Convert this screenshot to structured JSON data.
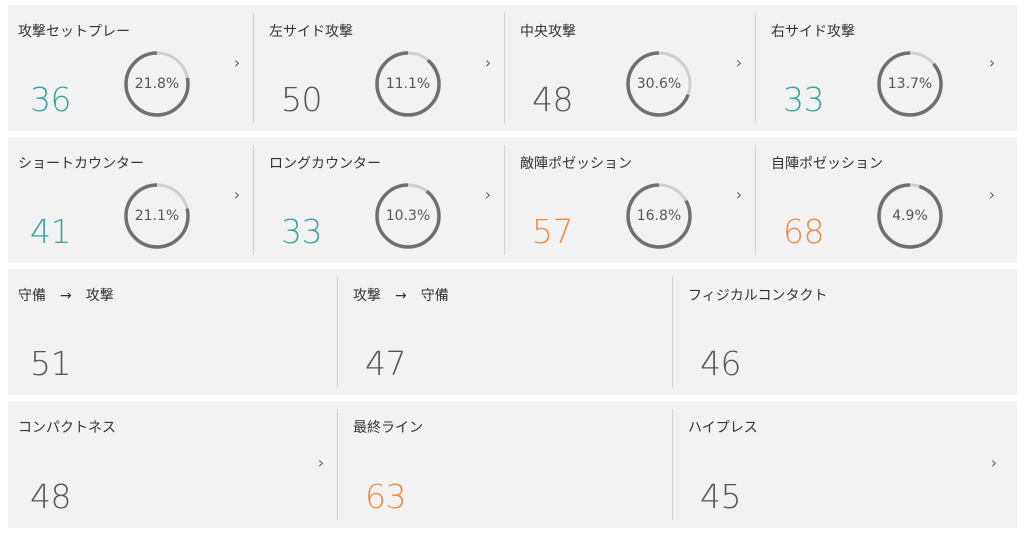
{
  "colors": {
    "teal": "#3aa59a",
    "orange": "#f0884a",
    "gray": "#555555",
    "ring_fg": "#707070",
    "ring_bg": "#cfcfcf"
  },
  "row1": [
    {
      "label": "攻撃セットプレー",
      "value": "36",
      "value_color": "teal",
      "pct_text": "21.8%",
      "pct": 21.8
    },
    {
      "label": "左サイド攻撃",
      "value": "50",
      "value_color": "gray",
      "pct_text": "11.1%",
      "pct": 11.1
    },
    {
      "label": "中央攻撃",
      "value": "48",
      "value_color": "gray",
      "pct_text": "30.6%",
      "pct": 30.6
    },
    {
      "label": "右サイド攻撃",
      "value": "33",
      "value_color": "teal",
      "pct_text": "13.7%",
      "pct": 13.7
    }
  ],
  "row2": [
    {
      "label": "ショートカウンター",
      "value": "41",
      "value_color": "teal",
      "pct_text": "21.1%",
      "pct": 21.1
    },
    {
      "label": "ロングカウンター",
      "value": "33",
      "value_color": "teal",
      "pct_text": "10.3%",
      "pct": 10.3
    },
    {
      "label": "敵陣ポゼッション",
      "value": "57",
      "value_color": "orange",
      "pct_text": "16.8%",
      "pct": 16.8
    },
    {
      "label": "自陣ポゼッション",
      "value": "68",
      "value_color": "orange",
      "pct_text": "4.9%",
      "pct": 4.9
    }
  ],
  "row3": [
    {
      "label_from": "守備",
      "arrow": "→",
      "label_to": "攻撃",
      "value": "51",
      "value_color": "gray"
    },
    {
      "label_from": "攻撃",
      "arrow": "→",
      "label_to": "守備",
      "value": "47",
      "value_color": "gray"
    },
    {
      "label": "フィジカルコンタクト",
      "value": "46",
      "value_color": "gray"
    }
  ],
  "row4": [
    {
      "label": "コンパクトネス",
      "value": "48",
      "value_color": "gray"
    },
    {
      "label": "最終ライン",
      "value": "63",
      "value_color": "orange"
    },
    {
      "label": "ハイプレス",
      "value": "45",
      "value_color": "gray"
    }
  ],
  "chevron": "›"
}
